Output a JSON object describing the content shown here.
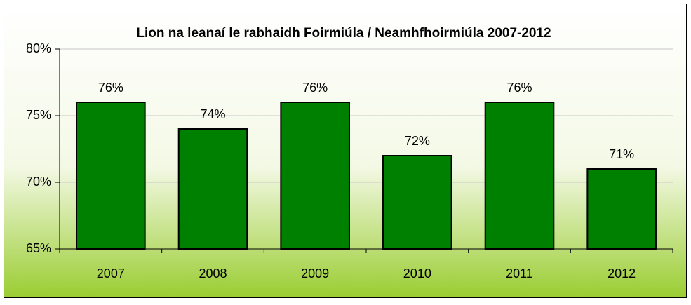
{
  "chart_data": {
    "type": "bar",
    "title": "Lion na leanaí le rabhaidh Foirmiúla / Neamhfhoirmiúla 2007-2012",
    "categories": [
      "2007",
      "2008",
      "2009",
      "2010",
      "2011",
      "2012"
    ],
    "values": [
      76,
      74,
      76,
      72,
      76,
      71
    ],
    "value_labels": [
      "76%",
      "74%",
      "76%",
      "72%",
      "76%",
      "71%"
    ],
    "color": "#008000",
    "ylim": [
      65,
      80
    ],
    "yticks": [
      {
        "value": 65,
        "label": "65%"
      },
      {
        "value": 70,
        "label": "70%"
      },
      {
        "value": 75,
        "label": "75%"
      },
      {
        "value": 80,
        "label": "80%"
      }
    ],
    "grid": true
  }
}
